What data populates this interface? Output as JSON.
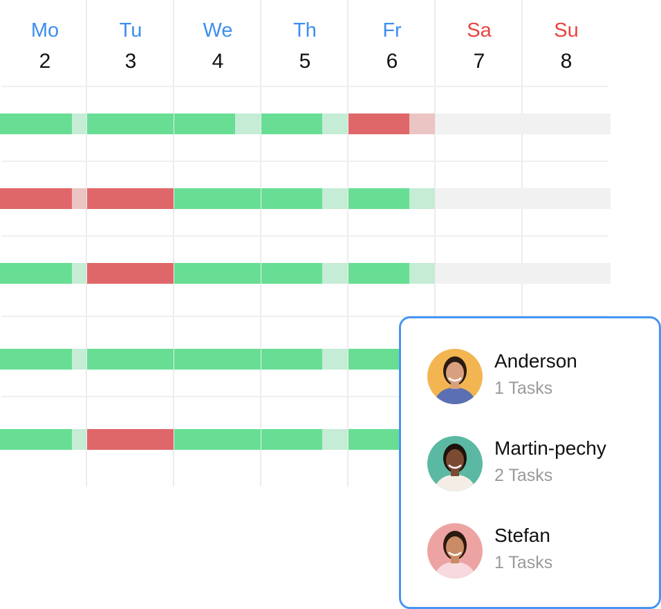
{
  "colors": {
    "weekday": "#3d8ef0",
    "weekend": "#e8443f",
    "green": "#67de94",
    "green_light": "#c5ecd5",
    "red": "#e06769",
    "red_light": "#ebc4c4",
    "empty": "#f1f1f1",
    "popup_border": "#4595f5"
  },
  "days": [
    {
      "name": "Mo",
      "num": "2",
      "weekend": false
    },
    {
      "name": "Tu",
      "num": "3",
      "weekend": false
    },
    {
      "name": "We",
      "num": "4",
      "weekend": false
    },
    {
      "name": "Th",
      "num": "5",
      "weekend": false
    },
    {
      "name": "Fr",
      "num": "6",
      "weekend": false
    },
    {
      "name": "Sa",
      "num": "7",
      "weekend": true
    },
    {
      "name": "Su",
      "num": "8",
      "weekend": true
    }
  ],
  "rows": [
    [
      {
        "s": "green",
        "fill": 0.83
      },
      {
        "s": "green",
        "fill": 1
      },
      {
        "s": "green",
        "fill": 0.7
      },
      {
        "s": "green",
        "fill": 0.7
      },
      {
        "s": "red",
        "fill": 0.7
      },
      {
        "s": "empty",
        "fill": 1
      },
      {
        "s": "empty",
        "fill": 1
      }
    ],
    [
      {
        "s": "red",
        "fill": 0.83
      },
      {
        "s": "red",
        "fill": 1
      },
      {
        "s": "green",
        "fill": 1
      },
      {
        "s": "green",
        "fill": 0.7
      },
      {
        "s": "green",
        "fill": 0.7
      },
      {
        "s": "empty",
        "fill": 1
      },
      {
        "s": "empty",
        "fill": 1
      }
    ],
    [
      {
        "s": "green",
        "fill": 0.83
      },
      {
        "s": "red",
        "fill": 1
      },
      {
        "s": "green",
        "fill": 1
      },
      {
        "s": "green",
        "fill": 0.7
      },
      {
        "s": "green",
        "fill": 0.7
      },
      {
        "s": "empty",
        "fill": 1
      },
      {
        "s": "empty",
        "fill": 1
      }
    ],
    [
      {
        "s": "green",
        "fill": 0.83
      },
      {
        "s": "green",
        "fill": 1
      },
      {
        "s": "green",
        "fill": 1
      },
      {
        "s": "green",
        "fill": 0.7
      },
      {
        "s": "green",
        "fill": 1
      },
      {
        "s": "empty",
        "fill": 1
      },
      {
        "s": "empty",
        "fill": 1
      }
    ],
    [
      {
        "s": "green",
        "fill": 0.83
      },
      {
        "s": "red",
        "fill": 1
      },
      {
        "s": "green",
        "fill": 1
      },
      {
        "s": "green",
        "fill": 0.7
      },
      {
        "s": "green",
        "fill": 1
      },
      {
        "s": "empty",
        "fill": 1
      },
      {
        "s": "empty",
        "fill": 1
      }
    ]
  ],
  "popup": {
    "people": [
      {
        "name": "Anderson",
        "tasks": "1 Tasks",
        "avatar_bg": "#f3b552",
        "shirt": "#5b6fb5",
        "skin": "#d9a07f",
        "hair": "#2a1a12"
      },
      {
        "name": "Martin-pechy",
        "tasks": "2 Tasks",
        "avatar_bg": "#5bb9a3",
        "shirt": "#f4ede6",
        "skin": "#7a4b32",
        "hair": "#1e120c"
      },
      {
        "name": "Stefan",
        "tasks": "1 Tasks",
        "avatar_bg": "#eea3a3",
        "shirt": "#f7d9df",
        "skin": "#c98c66",
        "hair": "#2b1a10"
      }
    ]
  }
}
